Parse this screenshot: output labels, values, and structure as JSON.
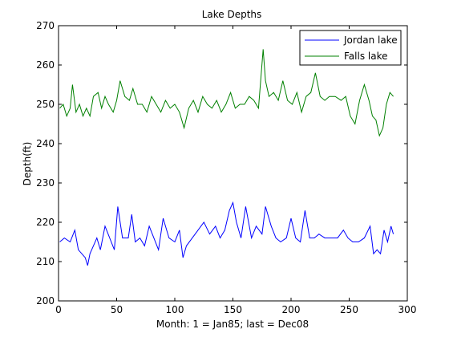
{
  "chart_data": {
    "type": "line",
    "title": "Lake Depths",
    "xlabel": "Month: 1 = Jan85; last = Dec08",
    "ylabel": "Depth(ft)",
    "xlim": [
      0,
      300
    ],
    "ylim": [
      200,
      270
    ],
    "xticks": [
      0,
      50,
      100,
      150,
      200,
      250,
      300
    ],
    "yticks": [
      200,
      210,
      220,
      230,
      240,
      250,
      260,
      270
    ],
    "grid": false,
    "legend_position": "top-right",
    "series": [
      {
        "name": "Jordan lake",
        "color": "#0000ff",
        "x": [
          1,
          5,
          10,
          14,
          17,
          20,
          23,
          25,
          27,
          30,
          33,
          36,
          40,
          44,
          48,
          51,
          55,
          60,
          63,
          66,
          70,
          74,
          78,
          82,
          86,
          90,
          95,
          100,
          104,
          107,
          110,
          115,
          120,
          125,
          130,
          135,
          139,
          143,
          147,
          150,
          153,
          157,
          161,
          166,
          170,
          175,
          178,
          183,
          187,
          191,
          196,
          200,
          204,
          208,
          212,
          216,
          220,
          224,
          229,
          235,
          240,
          245,
          249,
          253,
          258,
          263,
          268,
          271,
          274,
          277,
          280,
          283,
          286,
          288
        ],
        "y": [
          215,
          216,
          215,
          218,
          213,
          212,
          211,
          209,
          212,
          214,
          216,
          213,
          219,
          216,
          213,
          224,
          216,
          216,
          222,
          215,
          216,
          214,
          219,
          216,
          213,
          221,
          216,
          215,
          218,
          211,
          214,
          216,
          218,
          220,
          217,
          219,
          216,
          218,
          223,
          225,
          220,
          216,
          224,
          216,
          219,
          217,
          224,
          219,
          216,
          215,
          216,
          221,
          216,
          215,
          223,
          216,
          216,
          217,
          216,
          216,
          216,
          218,
          216,
          215,
          215,
          216,
          219,
          212,
          213,
          212,
          218,
          215,
          219,
          217
        ]
      },
      {
        "name": "Falls lake",
        "color": "#008000",
        "x": [
          1,
          4,
          7,
          10,
          12,
          15,
          18,
          21,
          24,
          27,
          30,
          34,
          37,
          40,
          43,
          47,
          50,
          53,
          57,
          61,
          64,
          68,
          72,
          76,
          80,
          84,
          88,
          92,
          96,
          100,
          104,
          108,
          112,
          116,
          120,
          124,
          128,
          132,
          136,
          140,
          144,
          148,
          152,
          156,
          160,
          164,
          168,
          172,
          176,
          178,
          181,
          185,
          189,
          193,
          197,
          201,
          205,
          209,
          213,
          217,
          221,
          225,
          229,
          233,
          238,
          243,
          247,
          251,
          255,
          259,
          263,
          267,
          270,
          273,
          276,
          279,
          282,
          285,
          288
        ],
        "y": [
          249,
          250,
          247,
          249,
          255,
          248,
          250,
          247,
          249,
          247,
          252,
          253,
          249,
          252,
          250,
          248,
          251,
          256,
          252,
          251,
          254,
          250,
          250,
          248,
          252,
          250,
          248,
          251,
          249,
          250,
          248,
          244,
          249,
          251,
          248,
          252,
          250,
          249,
          251,
          248,
          250,
          253,
          249,
          250,
          250,
          252,
          251,
          249,
          264,
          256,
          252,
          253,
          251,
          256,
          251,
          250,
          253,
          248,
          252,
          253,
          258,
          252,
          251,
          252,
          252,
          251,
          252,
          247,
          245,
          251,
          255,
          251,
          247,
          246,
          242,
          244,
          250,
          253,
          252
        ]
      }
    ]
  }
}
